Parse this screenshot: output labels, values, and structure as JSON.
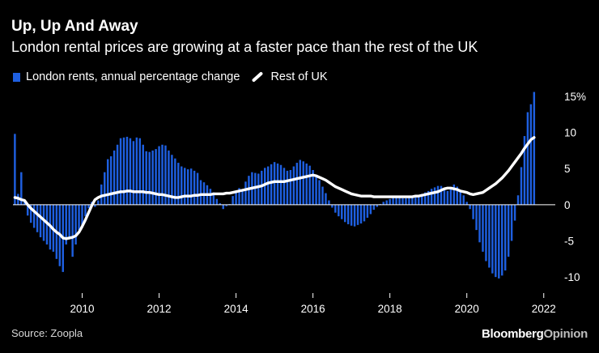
{
  "header": {
    "title": "Up, Up And Away",
    "subtitle": "London rental prices are growing at a faster pace than the rest of the UK"
  },
  "legend": {
    "london_label": "London rents, annual percentage change",
    "uk_label": "Rest of UK"
  },
  "footer": {
    "source": "Source: Zoopla",
    "brand_main": "Bloomberg",
    "brand_sub": "Opinion"
  },
  "colors": {
    "bar": "#1e5fe0",
    "line": "#ffffff",
    "axis": "#ffffff",
    "background": "#000000"
  },
  "chart_data": {
    "type": "bar",
    "title": "Up, Up And Away",
    "subtitle": "London rental prices are growing at a faster pace than the rest of the UK",
    "xlabel": "",
    "ylabel": "",
    "x_start": 2008.25,
    "x_step": 0.08333,
    "xlim": [
      2008.2,
      2022.3
    ],
    "ylim": [
      -12,
      16
    ],
    "grid": false,
    "legend_position": "top-left",
    "x_ticks": [
      2010,
      2012,
      2014,
      2016,
      2018,
      2020,
      2022
    ],
    "x_tick_labels": [
      "2010",
      "2012",
      "2014",
      "2016",
      "2018",
      "2020",
      "2022"
    ],
    "y_ticks": [
      15,
      10,
      5,
      0,
      -5,
      -10
    ],
    "y_tick_labels": [
      "15%",
      "10",
      "5",
      "0",
      "-5",
      "-10"
    ],
    "series": [
      {
        "name": "London rents, annual percentage change",
        "type": "bar",
        "values": [
          9.8,
          1.5,
          4.5,
          0.5,
          -1.5,
          -2.5,
          -3.2,
          -3.8,
          -4.5,
          -5,
          -5.5,
          -6.2,
          -6.5,
          -7.5,
          -8.5,
          -9.3,
          -5.5,
          -4.8,
          -7.2,
          -5.5,
          -3.5,
          -2.8,
          -1.6,
          -0.5,
          0.4,
          -0.3,
          0.6,
          2.8,
          4.5,
          6.3,
          6.7,
          7.5,
          8.3,
          9.2,
          9.3,
          9.4,
          9.2,
          8.8,
          9.3,
          9.2,
          8.3,
          7.4,
          7.3,
          7.5,
          7.7,
          8.1,
          8.3,
          8.2,
          7.5,
          6.9,
          6.4,
          5.8,
          5.3,
          5.1,
          4.9,
          5.0,
          4.7,
          4.4,
          3.4,
          3.1,
          2.7,
          2.2,
          1.7,
          0.8,
          0.2,
          -0.6,
          -0.2,
          0.1,
          1.2,
          1.9,
          2.3,
          2.0,
          3.2,
          4.0,
          4.5,
          4.4,
          4.3,
          4.7,
          5.1,
          5.3,
          5.6,
          5.9,
          5.7,
          5.5,
          5.1,
          4.7,
          4.8,
          5.3,
          5.8,
          6.2,
          6.0,
          5.7,
          5.4,
          4.8,
          4.1,
          3.4,
          2.5,
          1.6,
          0.6,
          -0.4,
          -1.1,
          -1.6,
          -2.0,
          -2.4,
          -2.7,
          -2.9,
          -3.0,
          -2.8,
          -2.6,
          -2.3,
          -1.8,
          -1.3,
          -0.7,
          -0.3,
          0.1,
          0.4,
          0.6,
          0.8,
          1.0,
          1.1,
          1.0,
          0.9,
          0.9,
          1.0,
          1.1,
          1.2,
          1.3,
          1.5,
          1.7,
          1.9,
          2.2,
          2.4,
          2.6,
          2.6,
          2.2,
          1.9,
          2.3,
          2.8,
          2.5,
          1.9,
          1.3,
          0.4,
          -0.6,
          -2.0,
          -3.5,
          -5.2,
          -6.5,
          -7.8,
          -8.7,
          -9.5,
          -10.0,
          -10.2,
          -9.8,
          -9.1,
          -7.2,
          -5.0,
          -2.2,
          1.3,
          5.2,
          9.5,
          12.8,
          13.9,
          15.6
        ]
      },
      {
        "name": "Rest of UK",
        "type": "line",
        "values": [
          1.0,
          0.9,
          0.7,
          0.6,
          0.0,
          -0.5,
          -0.9,
          -1.3,
          -1.7,
          -2.1,
          -2.5,
          -2.9,
          -3.4,
          -3.8,
          -4.1,
          -4.6,
          -4.7,
          -4.6,
          -4.5,
          -4.3,
          -3.8,
          -3.0,
          -2.1,
          -1.1,
          -0.1,
          0.7,
          1.0,
          1.2,
          1.3,
          1.4,
          1.5,
          1.6,
          1.7,
          1.8,
          1.8,
          1.9,
          1.9,
          1.8,
          1.8,
          1.8,
          1.8,
          1.7,
          1.7,
          1.6,
          1.5,
          1.4,
          1.4,
          1.3,
          1.2,
          1.1,
          1.0,
          1.0,
          1.1,
          1.2,
          1.2,
          1.2,
          1.3,
          1.3,
          1.4,
          1.4,
          1.4,
          1.4,
          1.5,
          1.5,
          1.5,
          1.5,
          1.6,
          1.6,
          1.7,
          1.8,
          1.9,
          2.0,
          2.1,
          2.2,
          2.3,
          2.4,
          2.5,
          2.6,
          2.8,
          3.0,
          3.1,
          3.2,
          3.2,
          3.2,
          3.2,
          3.3,
          3.4,
          3.5,
          3.6,
          3.7,
          3.8,
          3.9,
          4.0,
          4.1,
          4.0,
          3.8,
          3.6,
          3.4,
          3.1,
          2.8,
          2.5,
          2.3,
          2.1,
          1.9,
          1.7,
          1.5,
          1.4,
          1.3,
          1.2,
          1.2,
          1.2,
          1.2,
          1.1,
          1.1,
          1.1,
          1.1,
          1.1,
          1.1,
          1.1,
          1.1,
          1.1,
          1.1,
          1.1,
          1.1,
          1.1,
          1.2,
          1.2,
          1.3,
          1.4,
          1.5,
          1.6,
          1.7,
          1.8,
          2.0,
          2.2,
          2.3,
          2.3,
          2.2,
          2.1,
          1.9,
          1.8,
          1.7,
          1.5,
          1.4,
          1.5,
          1.6,
          1.7,
          2.0,
          2.3,
          2.6,
          2.9,
          3.3,
          3.7,
          4.2,
          4.7,
          5.3,
          5.9,
          6.5,
          7.1,
          7.8,
          8.4,
          9.0,
          9.3
        ]
      }
    ]
  }
}
